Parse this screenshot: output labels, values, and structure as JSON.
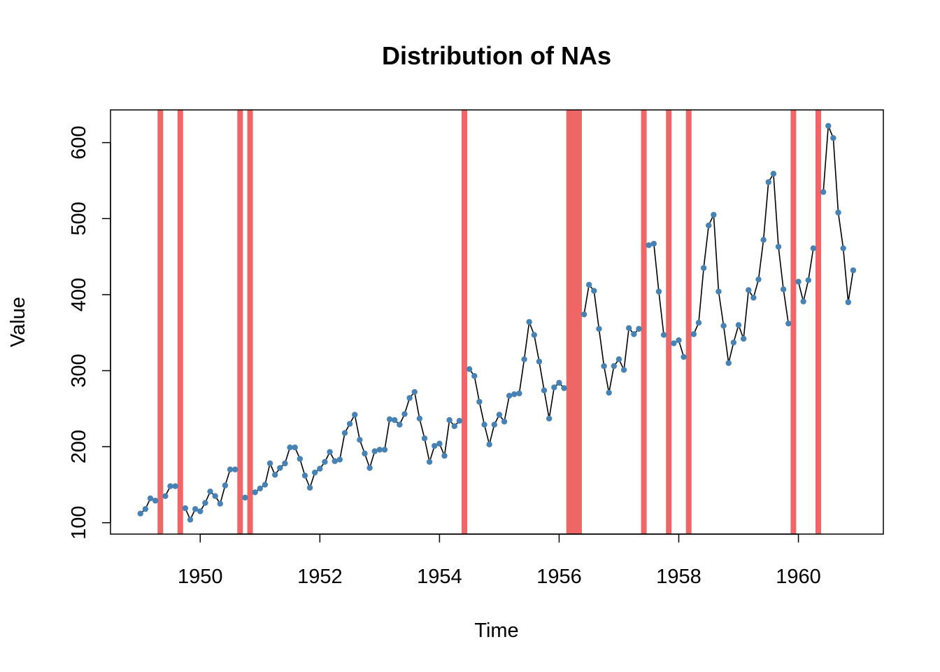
{
  "chart_data": {
    "type": "line",
    "title": "Distribution of NAs",
    "xlabel": "Time",
    "ylabel": "Value",
    "xlim": [
      1948.5,
      1961.42
    ],
    "ylim": [
      85,
      643
    ],
    "x_ticks": [
      1950,
      1952,
      1954,
      1956,
      1958,
      1960
    ],
    "y_ticks": [
      100,
      200,
      300,
      400,
      500,
      600
    ],
    "grid": false,
    "legend": "none",
    "colors": {
      "na_band": "#ef6666",
      "points": "#4682b4",
      "line": "#000000"
    },
    "start": 1949.0,
    "step": 0.08333,
    "values": [
      112,
      118,
      132,
      129,
      null,
      135,
      148,
      148,
      null,
      119,
      104,
      118,
      115,
      126,
      141,
      135,
      125,
      149,
      170,
      170,
      null,
      133,
      null,
      140,
      145,
      150,
      178,
      163,
      172,
      178,
      199,
      199,
      184,
      162,
      146,
      166,
      171,
      180,
      193,
      181,
      183,
      218,
      230,
      242,
      209,
      191,
      172,
      194,
      196,
      196,
      236,
      235,
      229,
      243,
      264,
      272,
      237,
      211,
      180,
      201,
      204,
      188,
      235,
      227,
      234,
      null,
      302,
      293,
      259,
      229,
      203,
      229,
      242,
      233,
      267,
      269,
      270,
      315,
      364,
      347,
      312,
      274,
      237,
      278,
      284,
      277,
      null,
      null,
      null,
      374,
      413,
      405,
      355,
      306,
      271,
      306,
      315,
      301,
      356,
      348,
      355,
      null,
      465,
      467,
      404,
      347,
      null,
      336,
      340,
      318,
      null,
      348,
      363,
      435,
      491,
      505,
      404,
      359,
      310,
      337,
      360,
      342,
      406,
      396,
      420,
      472,
      548,
      559,
      463,
      407,
      362,
      null,
      417,
      391,
      419,
      461,
      null,
      535,
      622,
      606,
      508,
      461,
      390,
      432
    ]
  }
}
